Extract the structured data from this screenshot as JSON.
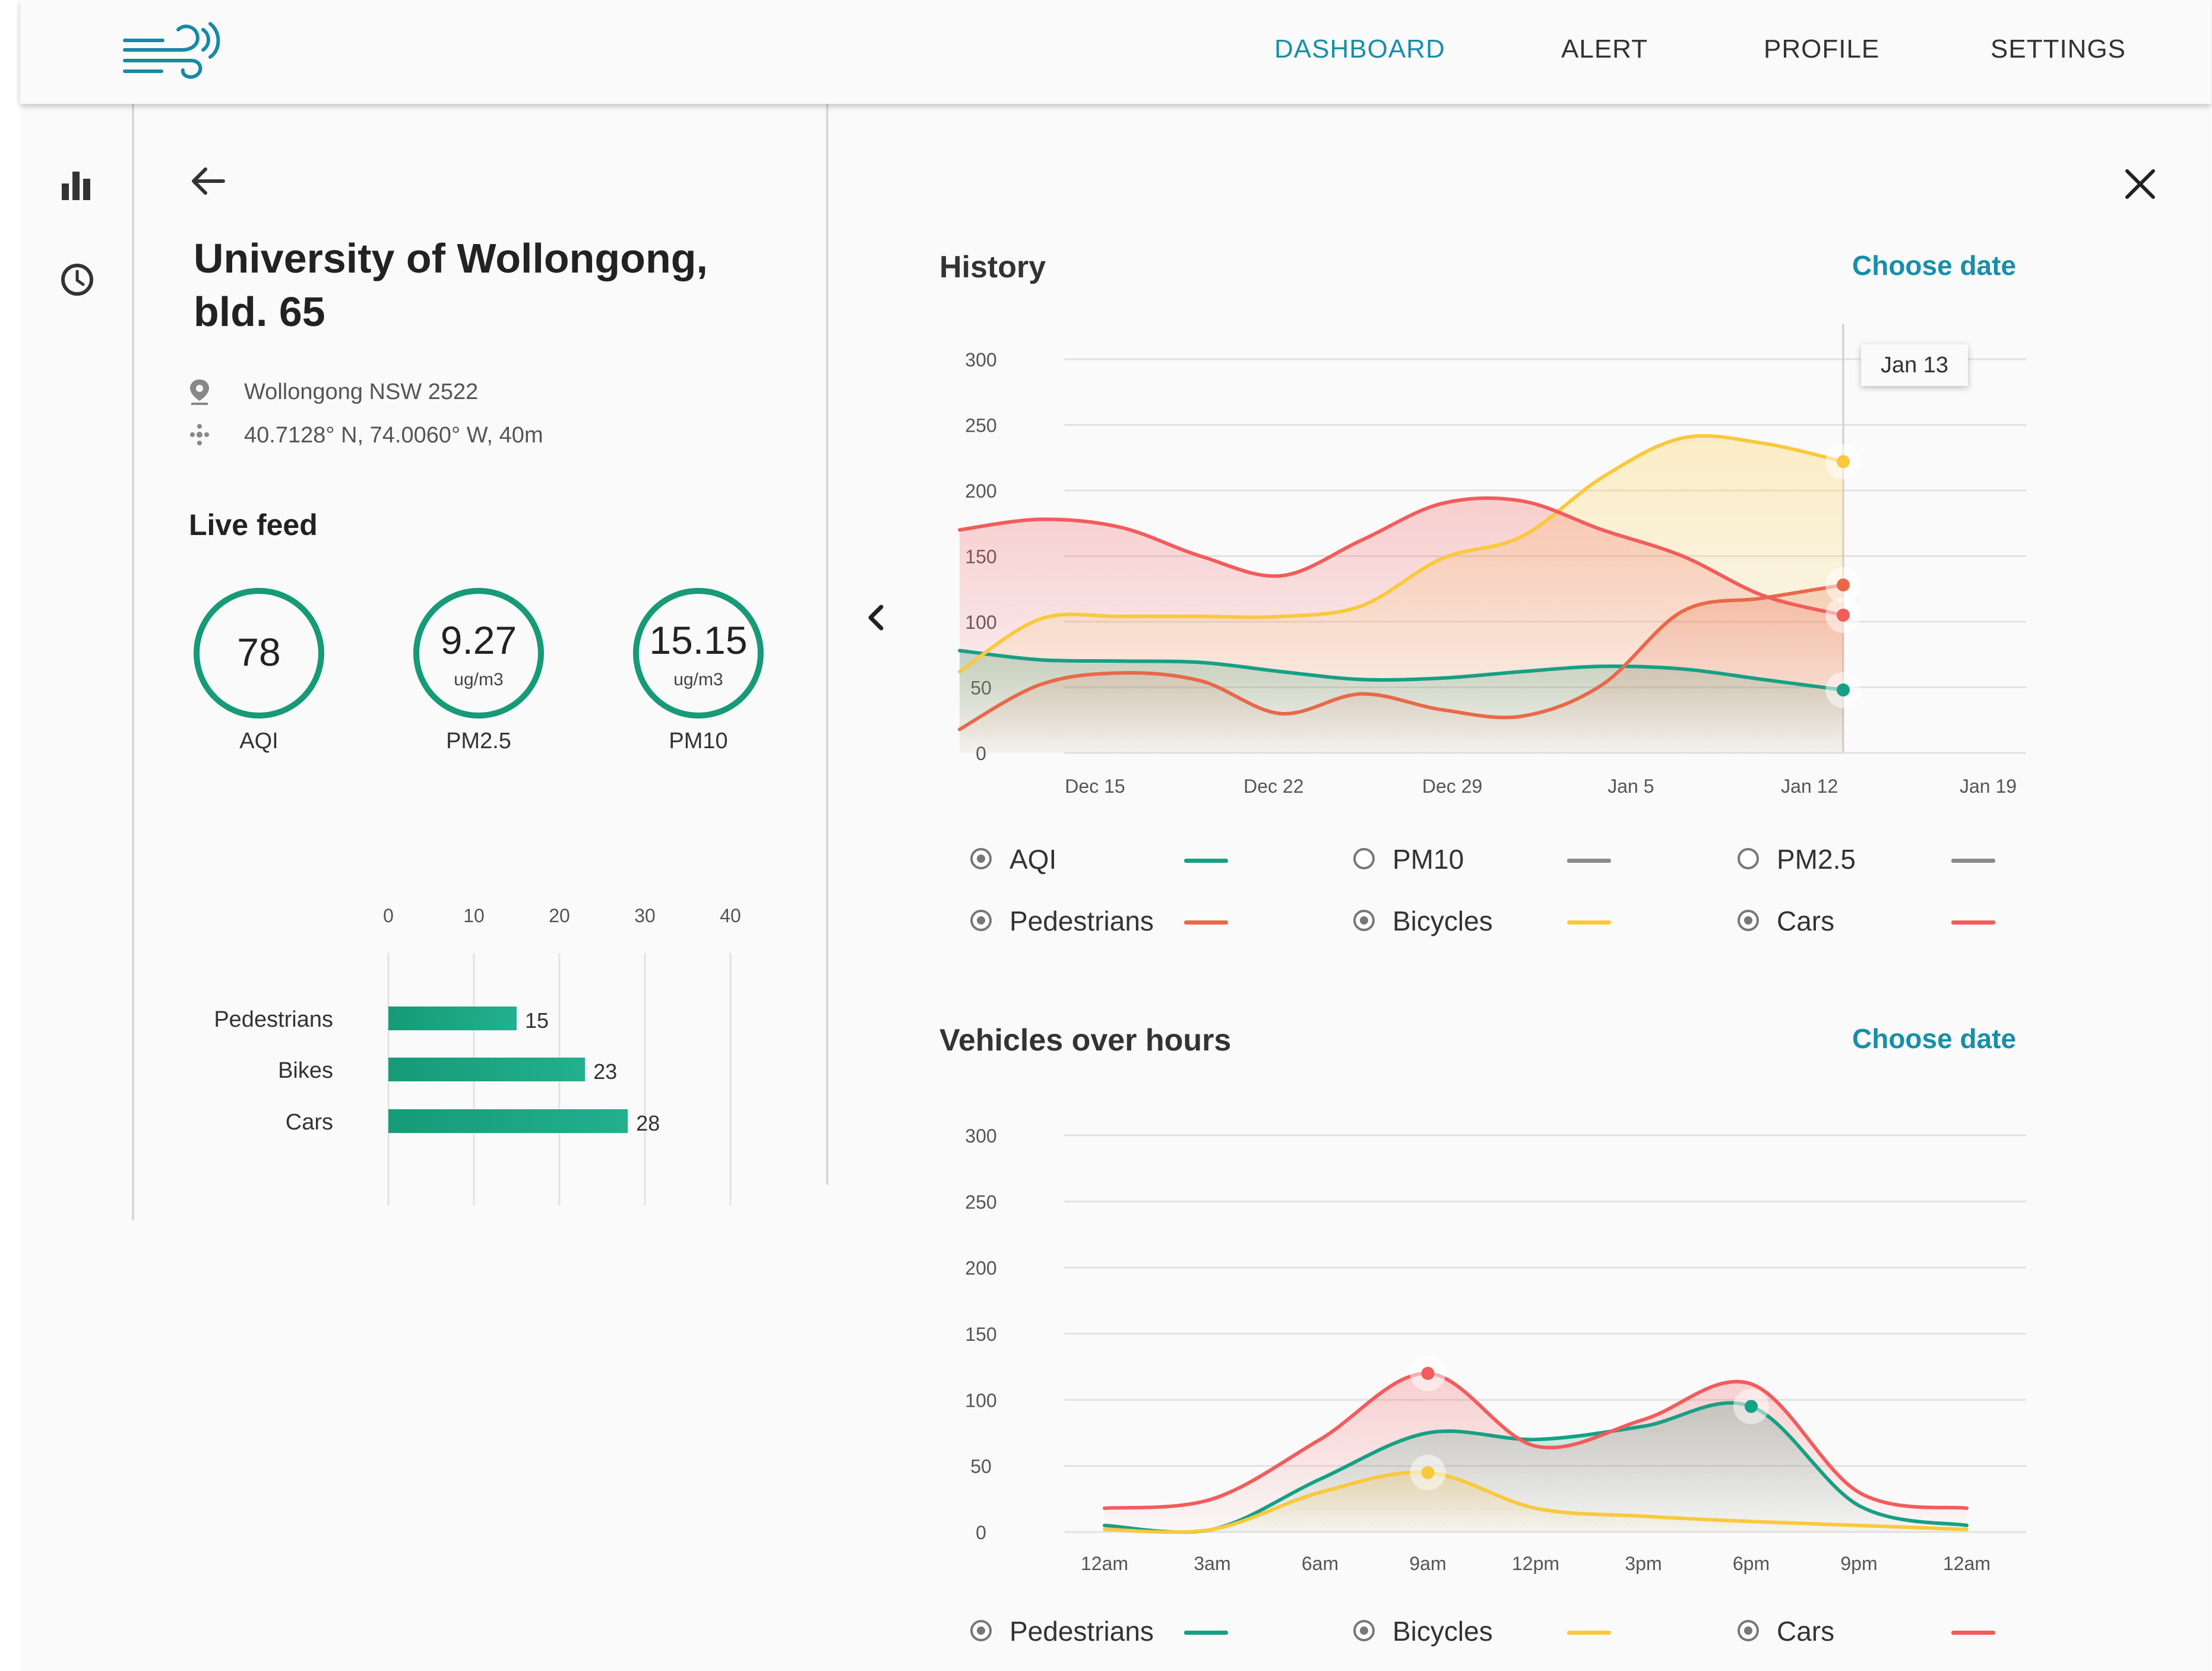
{
  "nav": {
    "items": [
      {
        "label": "DASHBOARD",
        "active": true
      },
      {
        "label": "ALERT",
        "active": false
      },
      {
        "label": "PROFILE",
        "active": false
      },
      {
        "label": "SETTINGS",
        "active": false
      }
    ]
  },
  "rail": {
    "icons": [
      "bar-chart-icon",
      "clock-icon"
    ]
  },
  "location": {
    "title_line1": "University of Wollongong,",
    "title_line2": "bld. 65",
    "address": "Wollongong NSW 2522",
    "coordinates": "40.7128° N, 74.0060° W, 40m"
  },
  "live_feed": {
    "title": "Live feed",
    "gauges": [
      {
        "value": "78",
        "unit": "",
        "label": "AQI"
      },
      {
        "value": "9.27",
        "unit": "ug/m3",
        "label": "PM2.5"
      },
      {
        "value": "15.15",
        "unit": "ug/m3",
        "label": "PM10"
      }
    ],
    "bar_chart": {
      "type": "bar",
      "orientation": "horizontal",
      "categories": [
        "Pedestrians",
        "Bikes",
        "Cars"
      ],
      "values": [
        15,
        23,
        28
      ],
      "xticks": [
        "0",
        "10",
        "20",
        "30",
        "40"
      ],
      "xlim": [
        0,
        40
      ],
      "color": "#1ba584"
    }
  },
  "history": {
    "title": "History",
    "choose_date": "Choose date",
    "tooltip": "Jan 13",
    "legend": [
      {
        "label": "AQI",
        "checked": true,
        "color": "#16a085"
      },
      {
        "label": "PM10",
        "checked": false,
        "color": "#8a8a8a"
      },
      {
        "label": "PM2.5",
        "checked": false,
        "color": "#8a8a8a"
      },
      {
        "label": "Pedestrians",
        "checked": true,
        "color": "#e8694a"
      },
      {
        "label": "Bicycles",
        "checked": true,
        "color": "#f9c93d"
      },
      {
        "label": "Cars",
        "checked": true,
        "color": "#f25c5c"
      }
    ]
  },
  "vehicles": {
    "title": "Vehicles over hours",
    "choose_date": "Choose date",
    "legend": [
      {
        "label": "Pedestrians",
        "checked": true,
        "color": "#16a085"
      },
      {
        "label": "Bicycles",
        "checked": true,
        "color": "#f9c93d"
      },
      {
        "label": "Cars",
        "checked": true,
        "color": "#f25c5c"
      }
    ]
  },
  "chart_data": [
    {
      "type": "bar",
      "categories": [
        "Pedestrians",
        "Bikes",
        "Cars"
      ],
      "values": [
        15,
        23,
        28
      ],
      "xlim": [
        0,
        40
      ],
      "grid": true
    },
    {
      "type": "area",
      "title": "History",
      "x": [
        "Dec 11",
        "Dec 13",
        "Dec 15",
        "Dec 18",
        "Dec 22",
        "Dec 25",
        "Dec 29",
        "Jan 1",
        "Jan 4",
        "Jan 7",
        "Jan 10",
        "Jan 13"
      ],
      "xticks": [
        "Dec 15",
        "Dec 22",
        "Dec 29",
        "Jan 5",
        "Jan 12",
        "Jan 19"
      ],
      "yticks": [
        "0",
        "50",
        "100",
        "150",
        "200",
        "250",
        "300"
      ],
      "ylim": [
        0,
        300
      ],
      "grid": true,
      "highlight_x": "Jan 13",
      "series": [
        {
          "name": "AQI",
          "color": "#16a085",
          "values": [
            78,
            71,
            70,
            69,
            62,
            56,
            57,
            62,
            66,
            64,
            56,
            48
          ]
        },
        {
          "name": "Pedestrians",
          "color": "#e8694a",
          "values": [
            18,
            52,
            61,
            55,
            30,
            45,
            33,
            28,
            52,
            108,
            118,
            128
          ]
        },
        {
          "name": "Bicycles",
          "color": "#f9c93d",
          "values": [
            62,
            102,
            104,
            104,
            104,
            112,
            148,
            165,
            210,
            240,
            236,
            222
          ]
        },
        {
          "name": "Cars",
          "color": "#f25c5c",
          "values": [
            170,
            178,
            172,
            150,
            135,
            162,
            190,
            192,
            170,
            150,
            120,
            105
          ]
        }
      ]
    },
    {
      "type": "area",
      "title": "Vehicles over hours",
      "x": [
        "12am",
        "3am",
        "6am",
        "9am",
        "12pm",
        "3pm",
        "6pm",
        "9pm",
        "12am"
      ],
      "yticks": [
        "0",
        "50",
        "100",
        "150",
        "200",
        "250",
        "300"
      ],
      "ylim": [
        0,
        300
      ],
      "grid": true,
      "series": [
        {
          "name": "Pedestrians",
          "color": "#16a085",
          "values": [
            5,
            2,
            40,
            75,
            70,
            80,
            95,
            20,
            5
          ]
        },
        {
          "name": "Bicycles",
          "color": "#f9c93d",
          "values": [
            2,
            2,
            30,
            45,
            18,
            12,
            8,
            5,
            2
          ]
        },
        {
          "name": "Cars",
          "color": "#f25c5c",
          "values": [
            18,
            25,
            70,
            120,
            65,
            85,
            112,
            30,
            18
          ]
        }
      ]
    }
  ]
}
